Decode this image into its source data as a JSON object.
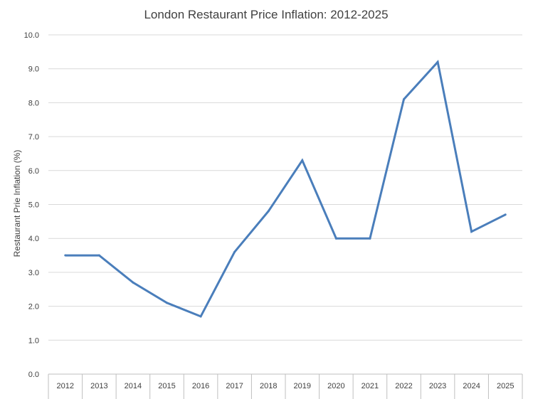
{
  "chart_data": {
    "type": "line",
    "title": "London Restaurant Price Inflation: 2012-2025",
    "xlabel": "",
    "ylabel": "Restaurant Prie Inflation (%)",
    "categories": [
      "2012",
      "2013",
      "2014",
      "2015",
      "2016",
      "2017",
      "2018",
      "2019",
      "2020",
      "2021",
      "2022",
      "2023",
      "2024",
      "2025"
    ],
    "series": [
      {
        "values": [
          3.5,
          3.5,
          2.7,
          2.1,
          1.7,
          3.6,
          4.8,
          6.3,
          4.0,
          4.0,
          8.1,
          9.2,
          4.2,
          4.7
        ],
        "color": "#4a7ebb"
      }
    ],
    "ylim": [
      0,
      10
    ],
    "yticks": [
      "0.0",
      "1.0",
      "2.0",
      "3.0",
      "4.0",
      "5.0",
      "6.0",
      "7.0",
      "8.0",
      "9.0",
      "10.0"
    ],
    "grid": true,
    "gridColor": "#d9d9d9"
  }
}
